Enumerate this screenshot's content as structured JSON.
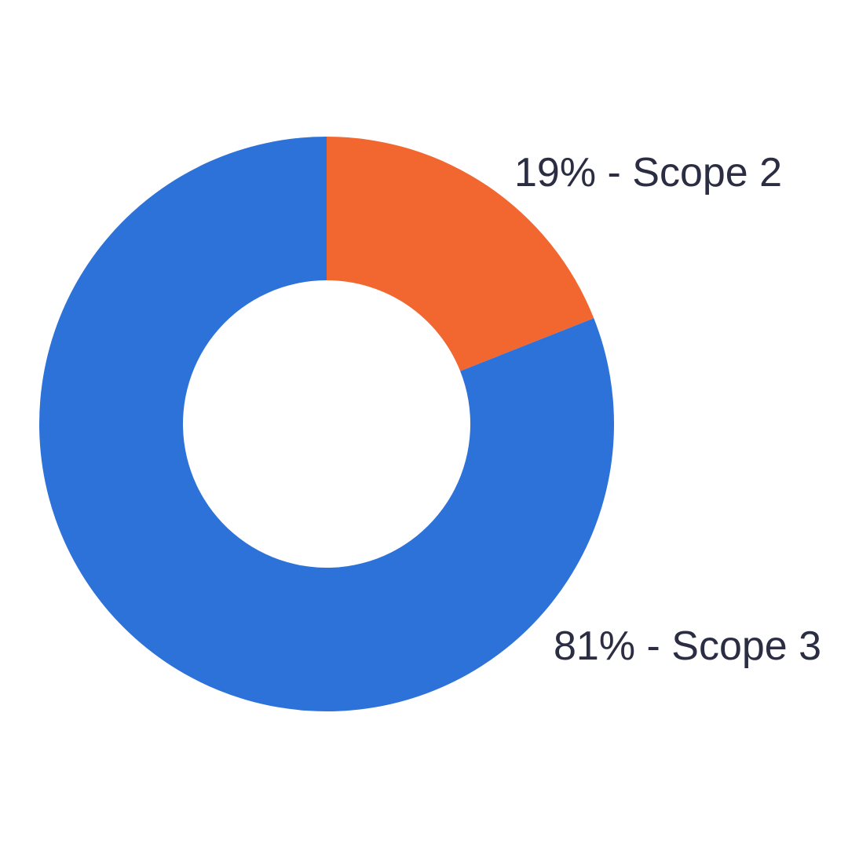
{
  "chart_data": {
    "type": "pie",
    "variant": "donut",
    "title": "",
    "slices": [
      {
        "label": "Scope 2",
        "value": 19,
        "display": "19% - Scope 2",
        "color": "#F26730"
      },
      {
        "label": "Scope 3",
        "value": 81,
        "display": "81% - Scope 3",
        "color": "#2D72D9"
      }
    ],
    "start": "top",
    "direction": "clockwise",
    "legend": "none"
  }
}
